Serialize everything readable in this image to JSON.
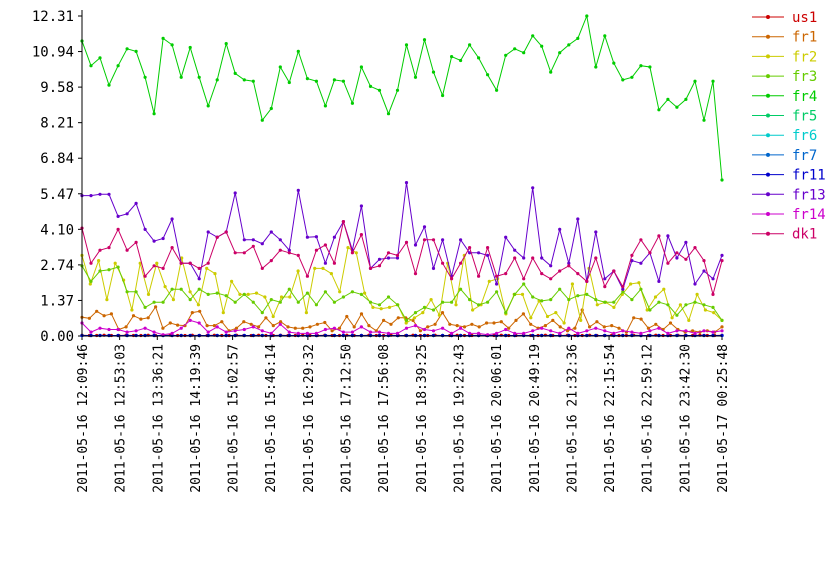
{
  "chart_data": {
    "type": "line",
    "title": "",
    "xlabel": "",
    "ylabel": "",
    "ylim": [
      0,
      12.31
    ],
    "yticks": [
      "0.00",
      "1.37",
      "2.74",
      "4.10",
      "5.47",
      "6.84",
      "8.21",
      "9.58",
      "10.94",
      "12.31"
    ],
    "xticks": [
      "2011-05-16 12:09:46",
      "2011-05-16 12:53:03",
      "2011-05-16 13:36:21",
      "2011-05-16 14:19:39",
      "2011-05-16 15:02:57",
      "2011-05-16 15:46:14",
      "2011-05-16 16:29:32",
      "2011-05-16 17:12:50",
      "2011-05-16 17:56:08",
      "2011-05-16 18:39:25",
      "2011-05-16 19:22:43",
      "2011-05-16 20:06:01",
      "2011-05-16 20:49:19",
      "2011-05-16 21:32:36",
      "2011-05-16 22:15:54",
      "2011-05-16 22:59:12",
      "2011-05-16 23:42:30",
      "2011-05-17 00:25:48"
    ],
    "x_start": "2011-05-16 12:09:46",
    "x_end": "2011-05-17 00:25:48",
    "grid": false,
    "legend_position": "right",
    "series": [
      {
        "name": "us1",
        "color": "#cc0000",
        "values": [
          0.03,
          0.02,
          0.02,
          0.03,
          0.02,
          0.02,
          0.03,
          0.02,
          0.02,
          0.03,
          0.02,
          0.02,
          0.03,
          0.02,
          0.02,
          0.03,
          0.02,
          0.02,
          0.03,
          0.02,
          0.02,
          0.03,
          0.02,
          0.02,
          0.03,
          0.02,
          0.02,
          0.03,
          0.02,
          0.02,
          0.03,
          0.02,
          0.02,
          0.03,
          0.02,
          0.02,
          0.03,
          0.02,
          0.02,
          0.03,
          0.02,
          0.02,
          0.03,
          0.02,
          0.02,
          0.03,
          0.02,
          0.02,
          0.03,
          0.02,
          0.02,
          0.03,
          0.02,
          0.02,
          0.03,
          0.02,
          0.02,
          0.03,
          0.02,
          0.02,
          0.03,
          0.02,
          0.02,
          0.03,
          0.02,
          0.02,
          0.03,
          0.02,
          0.02,
          0.03,
          0.02,
          0.02,
          0.03,
          0.02,
          0.02,
          0.03,
          0.02,
          0.02,
          0.03,
          0.02,
          0.02,
          0.03,
          0.02,
          0.02,
          0.03,
          0.02,
          0.02,
          0.03
        ]
      },
      {
        "name": "fr1",
        "color": "#cc6600",
        "values": [
          0.72,
          0.68,
          0.95,
          0.78,
          0.85,
          0.25,
          0.35,
          0.78,
          0.65,
          0.7,
          1.12,
          0.3,
          0.5,
          0.42,
          0.4,
          0.9,
          0.95,
          0.4,
          0.4,
          0.55,
          0.2,
          0.3,
          0.55,
          0.45,
          0.35,
          0.7,
          0.4,
          0.55,
          0.35,
          0.3,
          0.3,
          0.35,
          0.45,
          0.52,
          0.2,
          0.3,
          0.75,
          0.35,
          0.85,
          0.4,
          0.2,
          0.6,
          0.45,
          0.7,
          0.7,
          0.6,
          0.2,
          0.35,
          0.45,
          0.9,
          0.45,
          0.4,
          0.35,
          0.45,
          0.35,
          0.5,
          0.5,
          0.55,
          0.3,
          0.6,
          0.85,
          0.45,
          0.3,
          0.4,
          0.6,
          0.35,
          0.2,
          0.3,
          1.0,
          0.35,
          0.55,
          0.35,
          0.4,
          0.3,
          0.15,
          0.7,
          0.65,
          0.3,
          0.45,
          0.25,
          0.5,
          0.25,
          0.15,
          0.2,
          0.15,
          0.2,
          0.15,
          0.35
        ]
      },
      {
        "name": "fr2",
        "color": "#cccc00",
        "values": [
          3.1,
          2.0,
          2.9,
          1.4,
          2.8,
          2.15,
          1.0,
          2.8,
          1.6,
          2.8,
          1.9,
          1.4,
          3.0,
          1.7,
          1.2,
          2.6,
          2.4,
          0.9,
          2.1,
          1.6,
          1.6,
          1.65,
          1.5,
          0.75,
          1.5,
          1.5,
          2.5,
          0.9,
          2.6,
          2.6,
          2.4,
          1.7,
          3.4,
          3.2,
          1.65,
          1.1,
          1.05,
          1.1,
          1.2,
          0.5,
          0.7,
          0.9,
          1.4,
          0.8,
          2.8,
          1.2,
          3.1,
          1.0,
          1.2,
          2.1,
          2.2,
          0.85,
          1.6,
          1.6,
          0.7,
          1.35,
          0.75,
          0.9,
          0.5,
          2.0,
          0.6,
          2.6,
          1.2,
          1.3,
          1.1,
          1.6,
          2.0,
          2.05,
          1.0,
          1.5,
          1.8,
          0.7,
          1.2,
          0.6,
          1.6,
          1.0,
          0.9,
          0.6
        ]
      },
      {
        "name": "fr3",
        "color": "#66cc00",
        "values": [
          2.7,
          2.1,
          2.5,
          2.55,
          2.65,
          1.7,
          1.7,
          1.1,
          1.3,
          1.3,
          1.8,
          1.8,
          1.4,
          1.8,
          1.6,
          1.65,
          1.55,
          1.3,
          1.6,
          1.3,
          0.9,
          1.4,
          1.3,
          1.8,
          1.3,
          1.65,
          1.2,
          1.7,
          1.3,
          1.5,
          1.7,
          1.6,
          1.3,
          1.2,
          1.5,
          1.2,
          0.6,
          0.9,
          1.1,
          1.0,
          1.3,
          1.3,
          1.8,
          1.4,
          1.2,
          1.3,
          1.7,
          0.9,
          1.6,
          2.0,
          1.5,
          1.35,
          1.4,
          1.8,
          1.4,
          1.55,
          1.6,
          1.4,
          1.3,
          1.3,
          1.7,
          1.4,
          1.8,
          1.0,
          1.3,
          1.2,
          0.8,
          1.2,
          1.3,
          1.2,
          1.1,
          0.6
        ]
      },
      {
        "name": "fr4",
        "color": "#00cc00",
        "values": [
          11.35,
          10.4,
          10.7,
          9.65,
          10.4,
          11.05,
          10.95,
          9.95,
          8.55,
          11.45,
          11.2,
          9.95,
          11.1,
          9.95,
          8.85,
          9.85,
          11.25,
          10.1,
          9.85,
          9.8,
          8.3,
          8.75,
          10.35,
          9.75,
          10.95,
          9.9,
          9.8,
          8.85,
          9.85,
          9.8,
          8.95,
          10.35,
          9.6,
          9.45,
          8.55,
          9.45,
          11.2,
          9.95,
          11.4,
          10.15,
          9.25,
          10.75,
          10.6,
          11.2,
          10.7,
          10.05,
          9.45,
          10.8,
          11.05,
          10.9,
          11.55,
          11.15,
          10.15,
          10.9,
          11.2,
          11.45,
          12.31,
          10.35,
          11.55,
          10.5,
          9.85,
          9.95,
          10.4,
          10.35,
          8.7,
          9.1,
          8.8,
          9.1,
          9.8,
          8.3,
          9.8,
          6.0
        ]
      },
      {
        "name": "fr5",
        "color": "#00cc66",
        "values": [
          0.02,
          0.02,
          0.02,
          0.02,
          0.02,
          0.02,
          0.02,
          0.02,
          0.02,
          0.02,
          0.02,
          0.02,
          0.02,
          0.02,
          0.02,
          0.02,
          0.02,
          0.02,
          0.02,
          0.02,
          0.02,
          0.02,
          0.02,
          0.02,
          0.02,
          0.02,
          0.02,
          0.02,
          0.02,
          0.02,
          0.02,
          0.02,
          0.02,
          0.02,
          0.02,
          0.02,
          0.02,
          0.02,
          0.02,
          0.02,
          0.02,
          0.02,
          0.02,
          0.02,
          0.02,
          0.02,
          0.02,
          0.02,
          0.02,
          0.02,
          0.02,
          0.02,
          0.02,
          0.02,
          0.02,
          0.02,
          0.02,
          0.02,
          0.02,
          0.02,
          0.02,
          0.02,
          0.02,
          0.02,
          0.02,
          0.02,
          0.02,
          0.02,
          0.02,
          0.02,
          0.02,
          0.02
        ]
      },
      {
        "name": "fr6",
        "color": "#00cccc",
        "values": [
          0.02,
          0.02,
          0.02,
          0.02,
          0.02,
          0.02,
          0.02,
          0.02,
          0.02,
          0.02,
          0.02,
          0.02,
          0.02,
          0.02,
          0.02,
          0.02,
          0.02,
          0.02,
          0.02,
          0.02,
          0.02,
          0.02,
          0.02,
          0.02,
          0.02,
          0.02,
          0.02,
          0.02,
          0.02,
          0.02,
          0.02,
          0.02,
          0.02,
          0.02,
          0.02,
          0.02,
          0.02,
          0.02,
          0.02,
          0.02,
          0.02,
          0.02,
          0.02,
          0.02,
          0.02,
          0.02,
          0.02,
          0.02,
          0.02,
          0.02,
          0.02,
          0.02,
          0.02,
          0.02,
          0.02,
          0.02,
          0.02,
          0.02,
          0.02,
          0.02,
          0.02,
          0.02,
          0.02,
          0.02,
          0.02,
          0.02,
          0.02,
          0.02,
          0.02,
          0.02,
          0.02,
          0.02
        ]
      },
      {
        "name": "fr7",
        "color": "#0066cc",
        "values": [
          0.02,
          0.02,
          0.02,
          0.02,
          0.02,
          0.02,
          0.02,
          0.02,
          0.02,
          0.02,
          0.02,
          0.02,
          0.02,
          0.02,
          0.02,
          0.02,
          0.02,
          0.02,
          0.02,
          0.02,
          0.02,
          0.02,
          0.02,
          0.02,
          0.02,
          0.02,
          0.02,
          0.02,
          0.02,
          0.02,
          0.02,
          0.02,
          0.02,
          0.02,
          0.02,
          0.02,
          0.02,
          0.02,
          0.02,
          0.02,
          0.02,
          0.02,
          0.02,
          0.02,
          0.02,
          0.02,
          0.02,
          0.02,
          0.02,
          0.02,
          0.02,
          0.02,
          0.02,
          0.02,
          0.02,
          0.02,
          0.02,
          0.02,
          0.02,
          0.02,
          0.02,
          0.02,
          0.02,
          0.02,
          0.02,
          0.02,
          0.02,
          0.02,
          0.02,
          0.02,
          0.02,
          0.02
        ]
      },
      {
        "name": "fr11",
        "color": "#0000cc",
        "values": [
          0.02,
          0.02,
          0.02,
          0.02,
          0.02,
          0.02,
          0.02,
          0.02,
          0.02,
          0.02,
          0.02,
          0.02,
          0.02,
          0.02,
          0.02,
          0.02,
          0.02,
          0.02,
          0.02,
          0.02,
          0.02,
          0.02,
          0.02,
          0.02,
          0.02,
          0.02,
          0.02,
          0.02,
          0.02,
          0.02,
          0.02,
          0.02,
          0.02,
          0.02,
          0.02,
          0.02,
          0.02,
          0.02,
          0.02,
          0.02,
          0.02,
          0.02,
          0.02,
          0.02,
          0.02,
          0.02,
          0.02,
          0.02,
          0.02,
          0.02,
          0.02,
          0.02,
          0.02,
          0.02,
          0.02,
          0.02,
          0.02,
          0.02,
          0.02,
          0.02,
          0.02,
          0.02,
          0.02,
          0.02,
          0.02,
          0.02,
          0.02,
          0.02,
          0.02,
          0.02,
          0.02,
          0.02
        ]
      },
      {
        "name": "fr13",
        "color": "#6600cc",
        "values": [
          5.4,
          5.4,
          5.45,
          5.45,
          4.6,
          4.7,
          5.1,
          4.1,
          3.65,
          3.75,
          4.5,
          2.8,
          2.8,
          2.2,
          4.0,
          3.8,
          4.0,
          5.5,
          3.7,
          3.7,
          3.55,
          4.0,
          3.7,
          3.3,
          5.6,
          3.8,
          3.82,
          2.8,
          3.8,
          4.4,
          3.3,
          5.0,
          2.6,
          2.95,
          3.0,
          3.0,
          5.9,
          3.5,
          4.2,
          2.6,
          3.7,
          2.3,
          3.7,
          3.2,
          3.2,
          3.1,
          2.0,
          3.8,
          3.3,
          3.0,
          5.7,
          3.0,
          2.7,
          4.1,
          2.8,
          4.5,
          2.1,
          4.0,
          2.2,
          2.5,
          1.8,
          2.9,
          2.8,
          3.2,
          2.1,
          3.85,
          3.0,
          3.6,
          2.0,
          2.5,
          2.2,
          3.1
        ]
      },
      {
        "name": "fr14",
        "color": "#cc00cc",
        "values": [
          0.5,
          0.15,
          0.3,
          0.25,
          0.25,
          0.15,
          0.2,
          0.3,
          0.15,
          0.05,
          0.1,
          0.3,
          0.6,
          0.5,
          0.15,
          0.35,
          0.15,
          0.2,
          0.25,
          0.35,
          0.2,
          0.1,
          0.45,
          0.15,
          0.1,
          0.1,
          0.1,
          0.25,
          0.3,
          0.15,
          0.15,
          0.35,
          0.15,
          0.15,
          0.1,
          0.1,
          0.3,
          0.4,
          0.25,
          0.2,
          0.3,
          0.1,
          0.3,
          0.1,
          0.1,
          0.05,
          0.1,
          0.25,
          0.1,
          0.1,
          0.2,
          0.3,
          0.2,
          0.1,
          0.3,
          0.1,
          0.2,
          0.3,
          0.2,
          0.1,
          0.2,
          0.15,
          0.1,
          0.2,
          0.3,
          0.1,
          0.2,
          0.2,
          0.1,
          0.2,
          0.15,
          0.2
        ]
      },
      {
        "name": "dk1",
        "color": "#cc0066",
        "values": [
          4.15,
          2.8,
          3.3,
          3.4,
          4.1,
          3.3,
          3.6,
          2.3,
          2.7,
          2.6,
          3.4,
          2.8,
          2.8,
          2.6,
          2.8,
          3.8,
          4.0,
          3.2,
          3.2,
          3.45,
          2.6,
          2.9,
          3.3,
          3.2,
          3.1,
          2.3,
          3.3,
          3.5,
          2.8,
          4.4,
          3.2,
          3.9,
          2.6,
          2.7,
          3.2,
          3.1,
          3.6,
          2.4,
          3.7,
          3.7,
          2.8,
          2.2,
          2.8,
          3.4,
          2.3,
          3.4,
          2.3,
          2.4,
          3.0,
          2.2,
          3.0,
          2.4,
          2.2,
          2.5,
          2.7,
          2.4,
          2.1,
          3.0,
          1.9,
          2.5,
          1.9,
          3.1,
          3.7,
          3.2,
          3.85,
          2.8,
          3.2,
          2.95,
          3.4,
          2.9,
          1.6,
          2.9
        ]
      }
    ]
  }
}
